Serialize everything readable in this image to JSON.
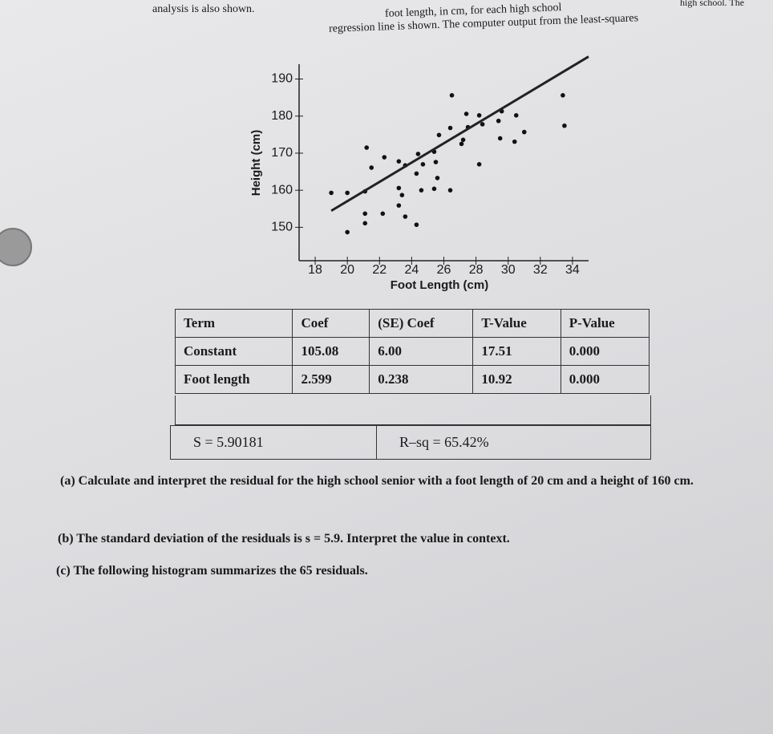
{
  "header": {
    "lines": [
      "high school. The",
      "foot length, in cm, for each high school",
      "regression line is shown. The computer output from the least-squares",
      "analysis is also shown."
    ]
  },
  "chart_data": {
    "type": "scatter",
    "x_label": "Foot Length (cm)",
    "y_label": "Height (cm)",
    "color": "#111111",
    "x": [
      20,
      19,
      20,
      21.1,
      21.1,
      21.1,
      22.2,
      23.2,
      23.6,
      24.3,
      21.2,
      21.5,
      22.3,
      23.2,
      23.6,
      23.2,
      23.4,
      24.3,
      24.4,
      24.7,
      25.4,
      25.5,
      25.6,
      24.6,
      25.4,
      26.4,
      25.7,
      26.4,
      26.5,
      27.1,
      27.2,
      27.4,
      27.5,
      28.2,
      28.4,
      28.2,
      29.4,
      29.5,
      29.6,
      30.5,
      30.4,
      31,
      33.4,
      33.5
    ],
    "values": [
      148.7,
      159.3,
      159.3,
      159.7,
      153.7,
      151.1,
      153.7,
      155.9,
      152.9,
      150.7,
      171.5,
      166.1,
      168.9,
      167.8,
      166.7,
      160.6,
      158.7,
      164.5,
      169.8,
      167,
      170.4,
      167.6,
      163.3,
      160,
      160.4,
      160,
      174.9,
      176.8,
      185.6,
      172.5,
      173.6,
      180.6,
      177,
      180.2,
      177.8,
      167,
      178.7,
      174,
      181.3,
      180.2,
      173.1,
      175.7,
      185.6,
      177.4
    ],
    "xlim": [
      17,
      35
    ],
    "xticks": [
      18,
      20,
      22,
      24,
      26,
      28,
      30,
      32,
      34
    ],
    "ylim": [
      141,
      194
    ],
    "yticks": [
      150,
      160,
      170,
      180,
      190
    ]
  },
  "table": {
    "header": [
      "Term",
      "Coef",
      "(SE) Coef",
      "T-Value",
      "P-Value"
    ],
    "rows": [
      [
        "Constant",
        "105.08",
        "6.00",
        "17.51",
        "0.000"
      ],
      [
        "Foot length",
        "2.599",
        "0.238",
        "10.92",
        "0.000"
      ]
    ],
    "summary": [
      "S = 5.90181",
      "R–sq = 65.42%"
    ]
  },
  "questions": [
    "(a) Calculate and interpret the residual for the high school senior with a foot length of 20 cm and a height of 160 cm.",
    "(b) The standard deviation of the residuals is s = 5.9. Interpret the value in context.",
    "(c) The following histogram summarizes the 65 residuals."
  ]
}
